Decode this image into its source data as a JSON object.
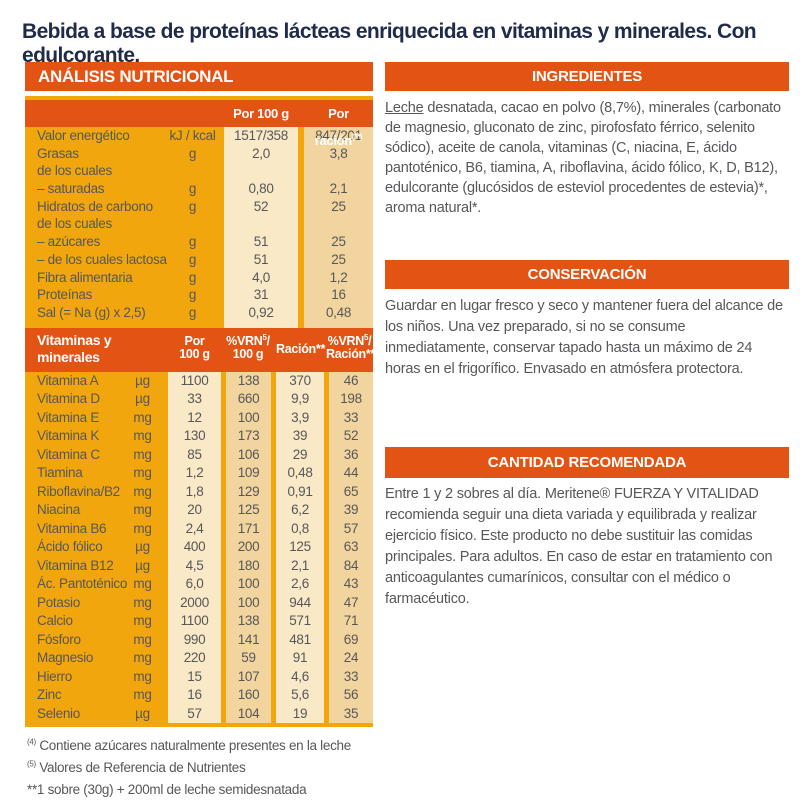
{
  "title": "Bebida a base de proteínas lácteas enriquecida en vitaminas y minerales. Con edulcorante.",
  "colors": {
    "accent_orange": "#e35414",
    "panel_yellow": "#f2a60d",
    "column_cream": "#f9e9c6",
    "column_tan": "#f2d59e",
    "title_navy": "#1f2b49",
    "body_text": "#57575a"
  },
  "nutrition": {
    "header": "ANÁLISIS NUTRICIONAL",
    "col_per100": "Por 100 g",
    "col_serving": "Por ración",
    "col_serving_sup": "(**)",
    "macro_rows": [
      {
        "label": "Valor energético",
        "unit": "kJ / kcal",
        "per100": "1517/358",
        "serving": "847/201"
      },
      {
        "label": "Grasas",
        "unit": "g",
        "per100": "2,0",
        "serving": "3,8"
      },
      {
        "label": "de los cuales",
        "unit": "",
        "per100": "",
        "serving": ""
      },
      {
        "label": "– saturadas",
        "unit": "g",
        "per100": "0,80",
        "serving": "2,1"
      },
      {
        "label": "Hidratos de carbono",
        "unit": "g",
        "per100": "52",
        "serving": "25"
      },
      {
        "label": "de los cuales",
        "unit": "",
        "per100": "",
        "serving": ""
      },
      {
        "label": "– azúcares",
        "unit": "g",
        "per100": "51",
        "serving": "25"
      },
      {
        "label": "– de los cuales lactosa",
        "unit": "g",
        "per100": "51",
        "serving": "25"
      },
      {
        "label": "Fibra alimentaria",
        "unit": "g",
        "per100": "4,0",
        "serving": "1,2"
      },
      {
        "label": "Proteínas",
        "unit": "g",
        "per100": "31",
        "serving": "16"
      },
      {
        "label": "Sal (= Na (g) x 2,5)",
        "unit": "g",
        "per100": "0,92",
        "serving": "0,48"
      }
    ],
    "vitamins_header": {
      "title_line1": "Vitaminas y",
      "title_line2": "minerales",
      "c1_line1": "Por",
      "c1_line2": "100 g",
      "c2_prefix": "%VRN",
      "c2_sup": "5",
      "c2_suffix": "/",
      "c2_line2": "100 g",
      "c3": "Ración**",
      "c4_prefix": "%VRN",
      "c4_sup": "5",
      "c4_suffix": "/",
      "c4_line2": "Ración**"
    },
    "vitamin_rows": [
      {
        "label": "Vitamina A",
        "unit": "µg",
        "per100": "1100",
        "vrn100": "138",
        "racion": "370",
        "vrnracion": "46"
      },
      {
        "label": "Vitamina D",
        "unit": "µg",
        "per100": "33",
        "vrn100": "660",
        "racion": "9,9",
        "vrnracion": "198"
      },
      {
        "label": "Vitamina E",
        "unit": "mg",
        "per100": "12",
        "vrn100": "100",
        "racion": "3,9",
        "vrnracion": "33"
      },
      {
        "label": "Vitamina K",
        "unit": "mg",
        "per100": "130",
        "vrn100": "173",
        "racion": "39",
        "vrnracion": "52"
      },
      {
        "label": "Vitamina C",
        "unit": "mg",
        "per100": "85",
        "vrn100": "106",
        "racion": "29",
        "vrnracion": "36"
      },
      {
        "label": "Tiamina",
        "unit": "mg",
        "per100": "1,2",
        "vrn100": "109",
        "racion": "0,48",
        "vrnracion": "44"
      },
      {
        "label": "Riboflavina/B2",
        "unit": "mg",
        "per100": "1,8",
        "vrn100": "129",
        "racion": "0,91",
        "vrnracion": "65"
      },
      {
        "label": "Niacina",
        "unit": "mg",
        "per100": "20",
        "vrn100": "125",
        "racion": "6,2",
        "vrnracion": "39"
      },
      {
        "label": "Vitamina B6",
        "unit": "mg",
        "per100": "2,4",
        "vrn100": "171",
        "racion": "0,8",
        "vrnracion": "57"
      },
      {
        "label": "Ácido fólico",
        "unit": "µg",
        "per100": "400",
        "vrn100": "200",
        "racion": "125",
        "vrnracion": "63"
      },
      {
        "label": "Vitamina B12",
        "unit": "µg",
        "per100": "4,5",
        "vrn100": "180",
        "racion": "2,1",
        "vrnracion": "84"
      },
      {
        "label": "Ác. Pantoténico",
        "unit": "mg",
        "per100": "6,0",
        "vrn100": "100",
        "racion": "2,6",
        "vrnracion": "43"
      },
      {
        "label": "Potasio",
        "unit": "mg",
        "per100": "2000",
        "vrn100": "100",
        "racion": "944",
        "vrnracion": "47"
      },
      {
        "label": "Calcio",
        "unit": "mg",
        "per100": "1100",
        "vrn100": "138",
        "racion": "571",
        "vrnracion": "71"
      },
      {
        "label": "Fósforo",
        "unit": "mg",
        "per100": "990",
        "vrn100": "141",
        "racion": "481",
        "vrnracion": "69"
      },
      {
        "label": "Magnesio",
        "unit": "mg",
        "per100": "220",
        "vrn100": "59",
        "racion": "91",
        "vrnracion": "24"
      },
      {
        "label": "Hierro",
        "unit": "mg",
        "per100": "15",
        "vrn100": "107",
        "racion": "4,6",
        "vrnracion": "33"
      },
      {
        "label": "Zinc",
        "unit": "mg",
        "per100": "16",
        "vrn100": "160",
        "racion": "5,6",
        "vrnracion": "56"
      },
      {
        "label": "Selenio",
        "unit": "µg",
        "per100": "57",
        "vrn100": "104",
        "racion": "19",
        "vrnracion": "35"
      }
    ]
  },
  "footnotes": {
    "fn4_marker": "(4)",
    "fn4_text": " Contiene azúcares naturalmente presentes en la leche",
    "fn5_marker": "(5)",
    "fn5_text": " Valores de Referencia de Nutrientes",
    "serving_marker": "**",
    "serving_text": "1 sobre (30g) + 200ml de leche semidesnatada"
  },
  "right": {
    "ingredients": {
      "header": "INGREDIENTES",
      "allergen": "Leche",
      "text": " desnatada, cacao en polvo (8,7%), minerales (carbonato de magnesio, gluconato de zinc, pirofosfato férrico, selenito sódico), aceite de canola, vitaminas (C, niacina, E, ácido pantoténico, B6, tiamina, A, riboflavina, ácido fólico, K, D, B12), edulcorante (glucósidos de esteviol procedentes de estevia)*, aroma natural*."
    },
    "conservation": {
      "header": "CONSERVACIÓN",
      "text": "Guardar en lugar fresco y seco y mantener fuera del alcance de los niños. Una vez preparado, si no se consume inmediatamente, conservar tapado hasta un máximo de 24 horas en el frigorífico. Envasado en atmósfera protectora."
    },
    "recommended": {
      "header": "CANTIDAD RECOMENDADA",
      "text": "Entre 1 y 2 sobres al día. Meritene® FUERZA Y VITALIDAD recomienda seguir una dieta variada y equilibrada y realizar ejercicio físico. Este producto no debe sustituir las comidas principales. Para adultos. En caso de estar en tratamiento con anticoagulantes cumarínicos, consultar con el médico o farmacéutico."
    }
  }
}
